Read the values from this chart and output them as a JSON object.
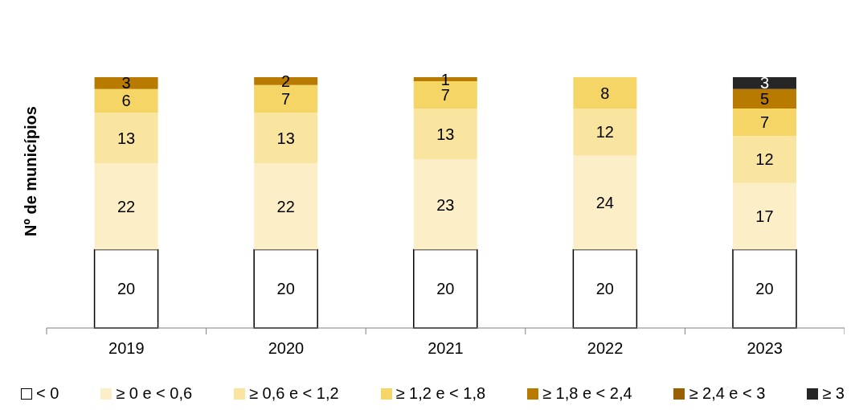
{
  "chart_data": {
    "type": "bar",
    "stacked": true,
    "ylabel": "Nº de municípios",
    "categories": [
      "2019",
      "2020",
      "2021",
      "2022",
      "2023"
    ],
    "series": [
      {
        "name": "< 0",
        "color": "#ffffff",
        "values": [
          20,
          20,
          20,
          20,
          20
        ]
      },
      {
        "name": "≥ 0 e < 0,6",
        "color": "#fcefc8",
        "values": [
          22,
          22,
          23,
          24,
          17
        ]
      },
      {
        "name": "≥ 0,6 e < 1,2",
        "color": "#f9e4a0",
        "values": [
          13,
          13,
          13,
          12,
          12
        ]
      },
      {
        "name": "≥ 1,2 e < 1,8",
        "color": "#f5d565",
        "values": [
          6,
          7,
          7,
          8,
          7
        ]
      },
      {
        "name": "≥ 1,8 e < 2,4",
        "color": "#b97a00",
        "values": [
          3,
          2,
          1,
          null,
          5
        ]
      },
      {
        "name": "≥ 2,4 e < 3",
        "color": "#9a6000",
        "values": [
          null,
          null,
          null,
          null,
          null
        ]
      },
      {
        "name": "≥ 3",
        "color": "#262626",
        "values": [
          null,
          null,
          null,
          null,
          3
        ]
      }
    ],
    "data_labels": true,
    "grid": false,
    "legend": "bottom"
  }
}
